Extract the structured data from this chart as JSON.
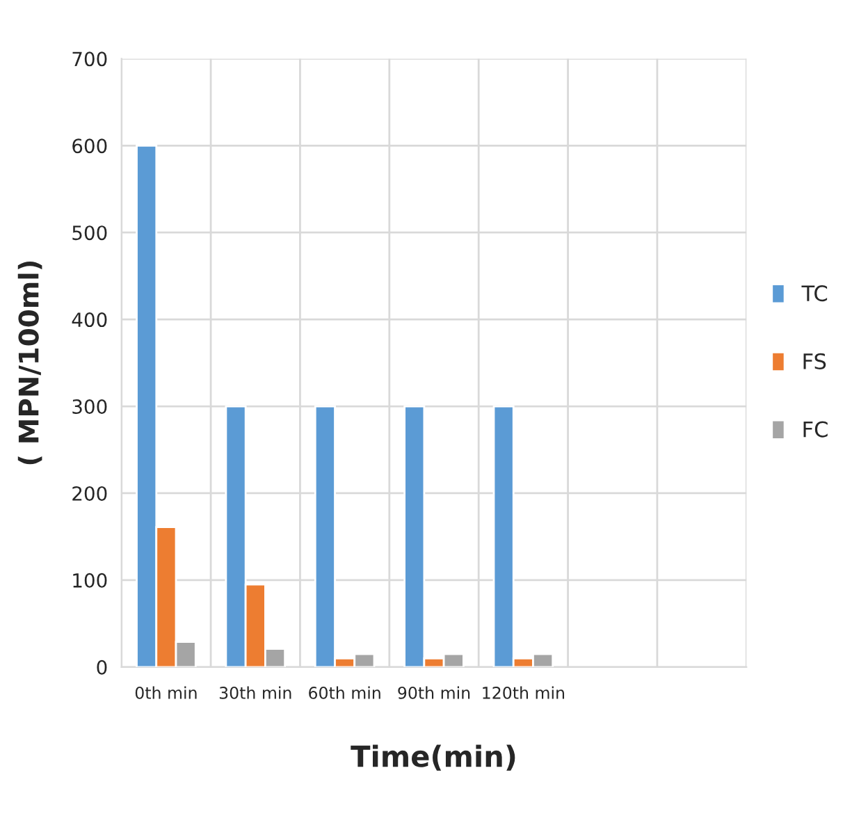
{
  "chart_data": {
    "type": "bar",
    "xlabel": "Time(min)",
    "ylabel": "( MPN/100ml)",
    "categories": [
      "0th min",
      "30th min",
      "60th min",
      "90th min",
      "120th min",
      null,
      null
    ],
    "series": [
      {
        "name": "TC",
        "color": "#5b9bd5",
        "values": [
          600,
          300,
          300,
          300,
          300,
          null,
          null
        ]
      },
      {
        "name": "FS",
        "color": "#ed7d31",
        "values": [
          161,
          95,
          10,
          10,
          10,
          null,
          null
        ]
      },
      {
        "name": "FC",
        "color": "#a5a5a5",
        "values": [
          29,
          21,
          15,
          15,
          15,
          null,
          null
        ]
      }
    ],
    "ylim": [
      0,
      700
    ],
    "yticks": [
      0,
      100,
      200,
      300,
      400,
      500,
      600,
      700
    ],
    "grid": true,
    "legend": "right"
  }
}
